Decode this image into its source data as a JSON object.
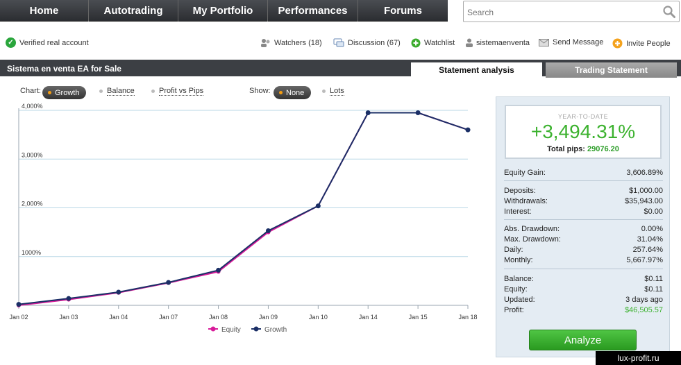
{
  "nav": {
    "items": [
      {
        "label": "Home",
        "name": "nav-home"
      },
      {
        "label": "Autotrading",
        "name": "nav-autotrading"
      },
      {
        "label": "My Portfolio",
        "name": "nav-my-portfolio"
      },
      {
        "label": "Performances",
        "name": "nav-performances"
      },
      {
        "label": "Forums",
        "name": "nav-forums"
      }
    ],
    "search_placeholder": "Search"
  },
  "info": {
    "verified": "Verified real account",
    "watchers": "Watchers (18)",
    "discussion": "Discussion (67)",
    "watchlist": "Watchlist",
    "user": "sistemaenventa",
    "send_message": "Send Message",
    "invite": "Invite People"
  },
  "account": {
    "title": "Sistema en venta EA for Sale",
    "tab_statement": "Statement analysis",
    "tab_trading": "Trading Statement"
  },
  "options": {
    "chart_label": "Chart:",
    "growth": "Growth",
    "balance": "Balance",
    "profit_vs_pips": "Profit vs Pips",
    "show_label": "Show:",
    "none": "None",
    "lots": "Lots"
  },
  "chart_data": {
    "type": "line",
    "categories": [
      "Jan 02",
      "Jan 03",
      "Jan 04",
      "Jan 07",
      "Jan 08",
      "Jan 09",
      "Jan 10",
      "Jan 14",
      "Jan 15",
      "Jan 18"
    ],
    "series": [
      {
        "name": "Equity",
        "color": "#d81b9a",
        "values": [
          0,
          120,
          260,
          460,
          690,
          1500,
          2040,
          3950,
          3950,
          3600
        ]
      },
      {
        "name": "Growth",
        "color": "#1b2f66",
        "values": [
          20,
          140,
          270,
          470,
          720,
          1530,
          2040,
          3950,
          3950,
          3600
        ]
      }
    ],
    "yticks": [
      {
        "v": 1000,
        "label": "1000%"
      },
      {
        "v": 2000,
        "label": "2,000%"
      },
      {
        "v": 3000,
        "label": "3,000%"
      },
      {
        "v": 4000,
        "label": "4,000%"
      }
    ],
    "ylim": [
      0,
      4000
    ],
    "grid": true,
    "legend": "bottom"
  },
  "stats": {
    "ytd_label": "YEAR-TO-DATE",
    "ytd_value": "+3,494.31%",
    "pips_label": "Total pips:",
    "pips_value": "29076.20",
    "rows": [
      {
        "k": "Equity Gain:",
        "v": "3,606.89%"
      },
      {
        "k": "Deposits:",
        "v": "$1,000.00"
      },
      {
        "k": "Withdrawals:",
        "v": "$35,943.00"
      },
      {
        "k": "Interest:",
        "v": "$0.00"
      },
      {
        "k": "Abs. Drawdown:",
        "v": "0.00%"
      },
      {
        "k": "Max. Drawdown:",
        "v": "31.04%"
      },
      {
        "k": "Daily:",
        "v": "257.64%"
      },
      {
        "k": "Monthly:",
        "v": "5,667.97%"
      },
      {
        "k": "Balance:",
        "v": "$0.11"
      },
      {
        "k": "Equity:",
        "v": "$0.11"
      },
      {
        "k": "Updated:",
        "v": "3 days ago"
      },
      {
        "k": "Profit:",
        "v": "$46,505.57"
      }
    ],
    "profit_color": "#3cb22f",
    "analyze": "Analyze"
  },
  "watermark": "lux-profit.ru"
}
